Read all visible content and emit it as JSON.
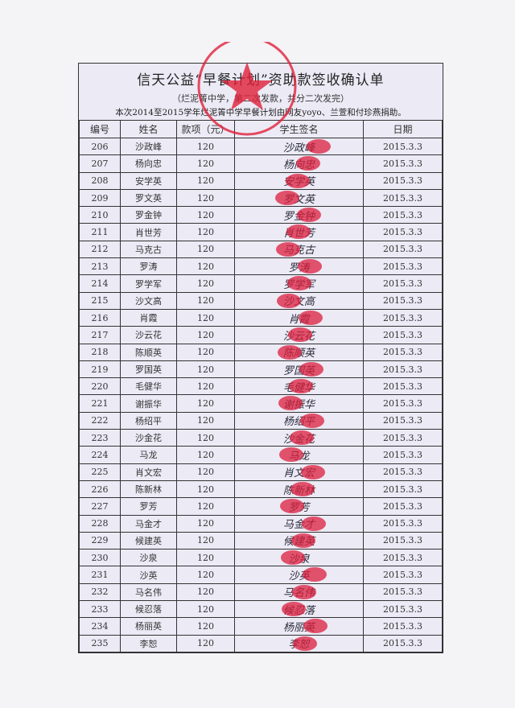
{
  "document": {
    "title": "信天公益“早餐计划”资助款签收确认单",
    "subtitle": "（烂泥箐中学，第二次发款，共分二次发完）",
    "note": "本次2014至2015学年烂泥箐中学早餐计划由网友yoyo、兰萱和付珍燕捐助。",
    "columns": [
      "编号",
      "姓名",
      "款项（元）",
      "学生签名",
      "日期"
    ],
    "rows": [
      [
        "206",
        "沙政峰",
        "120",
        "沙政峰",
        "2015.3.3"
      ],
      [
        "207",
        "杨向忠",
        "120",
        "杨向忠",
        "2015.3.3"
      ],
      [
        "208",
        "安学英",
        "120",
        "安学英",
        "2015.3.3"
      ],
      [
        "209",
        "罗文英",
        "120",
        "罗文英",
        "2015.3.3"
      ],
      [
        "210",
        "罗金钟",
        "120",
        "罗金钟",
        "2015.3.3"
      ],
      [
        "211",
        "肖世芳",
        "120",
        "肖世芳",
        "2015.3.3"
      ],
      [
        "212",
        "马克古",
        "120",
        "马克古",
        "2015.3.3"
      ],
      [
        "213",
        "罗涛",
        "120",
        "罗涛",
        "2015.3.3"
      ],
      [
        "214",
        "罗学军",
        "120",
        "罗学军",
        "2015.3.3"
      ],
      [
        "215",
        "沙文高",
        "120",
        "沙文高",
        "2015.3.3"
      ],
      [
        "216",
        "肖霞",
        "120",
        "肖霞",
        "2015.3.3"
      ],
      [
        "217",
        "沙云花",
        "120",
        "沙云花",
        "2015.3.3"
      ],
      [
        "218",
        "陈顺英",
        "120",
        "陈顺英",
        "2015.3.3"
      ],
      [
        "219",
        "罗国英",
        "120",
        "罗国英",
        "2015.3.3"
      ],
      [
        "220",
        "毛健华",
        "120",
        "毛健华",
        "2015.3.3"
      ],
      [
        "221",
        "谢振华",
        "120",
        "谢振华",
        "2015.3.3"
      ],
      [
        "222",
        "杨绍平",
        "120",
        "杨绍平",
        "2015.3.3"
      ],
      [
        "223",
        "沙金花",
        "120",
        "沙金花",
        "2015.3.3"
      ],
      [
        "224",
        "马龙",
        "120",
        "马龙",
        "2015.3.3"
      ],
      [
        "225",
        "肖文宏",
        "120",
        "肖文宏",
        "2015.3.3"
      ],
      [
        "226",
        "陈新林",
        "120",
        "陈新林",
        "2015.3.3"
      ],
      [
        "227",
        "罗芳",
        "120",
        "罗芳",
        "2015.3.3"
      ],
      [
        "228",
        "马金才",
        "120",
        "马金才",
        "2015.3.3"
      ],
      [
        "229",
        "候建英",
        "120",
        "候建英",
        "2015.3.3"
      ],
      [
        "230",
        "沙泉",
        "120",
        "沙泉",
        "2015.3.3"
      ],
      [
        "231",
        "沙英",
        "120",
        "沙英",
        "2015.3.3"
      ],
      [
        "232",
        "马名伟",
        "120",
        "马名伟",
        "2015.3.3"
      ],
      [
        "233",
        "候忍落",
        "120",
        "候忍落",
        "2015.3.3"
      ],
      [
        "234",
        "杨丽英",
        "120",
        "杨丽英",
        "2015.3.3"
      ],
      [
        "235",
        "李恕",
        "120",
        "李恕",
        "2015.3.3"
      ]
    ]
  },
  "stamp_color": "#e0203a"
}
